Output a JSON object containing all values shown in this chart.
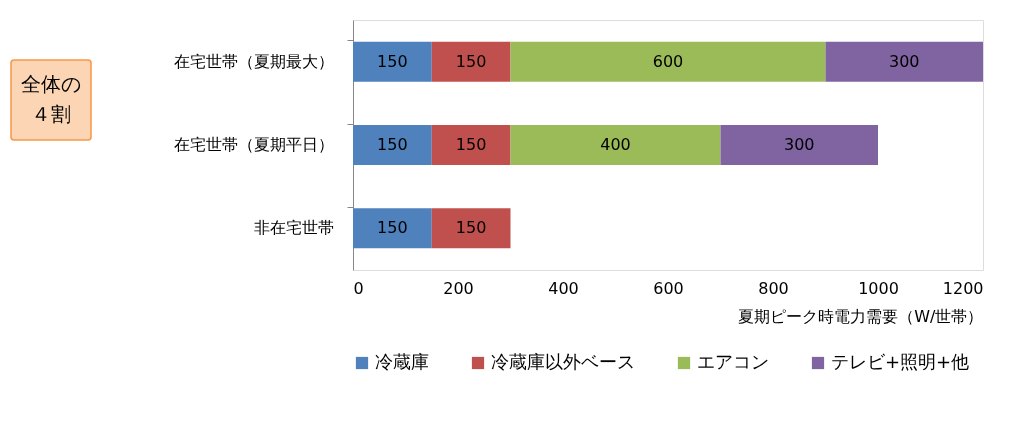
{
  "chart_data": {
    "type": "bar",
    "orientation": "horizontal",
    "stacked": true,
    "data_labels": true,
    "grid": false,
    "legend": "bottom",
    "categories": [
      "在宅世帯（夏期最大）",
      "在宅世帯（夏期平日）",
      "非在宅世帯"
    ],
    "series": [
      {
        "name": "冷蔵庫",
        "color": "#4f81bd",
        "values": [
          150,
          150,
          150
        ]
      },
      {
        "name": "冷蔵庫以外ベース",
        "color": "#c0504d",
        "values": [
          150,
          150,
          150
        ]
      },
      {
        "name": "エアコン",
        "color": "#9bbb59",
        "values": [
          600,
          400,
          null
        ]
      },
      {
        "name": "テレビ+照明+他",
        "color": "#8064a2",
        "values": [
          300,
          300,
          null
        ]
      }
    ],
    "xlim": [
      0,
      1200
    ],
    "xticks": [
      0,
      200,
      400,
      600,
      800,
      1000,
      1200
    ],
    "xlabel": "夏期ピーク時電力需要（W/世帯）",
    "annotations": [
      "全体の４割"
    ]
  }
}
